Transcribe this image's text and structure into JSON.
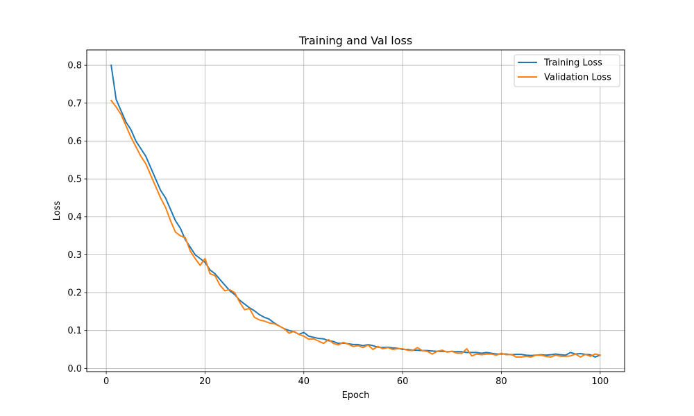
{
  "chart_data": {
    "type": "line",
    "title": "Training and Val loss",
    "xlabel": "Epoch",
    "ylabel": "Loss",
    "xlim": [
      -3.95,
      104.95
    ],
    "ylim": [
      -0.0085,
      0.8405
    ],
    "xticks": [
      0,
      20,
      40,
      60,
      80,
      100
    ],
    "yticks": [
      0.0,
      0.1,
      0.2,
      0.3,
      0.4,
      0.5,
      0.6,
      0.7,
      0.8
    ],
    "ytick_labels": [
      "0.0",
      "0.1",
      "0.2",
      "0.3",
      "0.4",
      "0.5",
      "0.6",
      "0.7",
      "0.8"
    ],
    "grid": true,
    "legend_position": "top-right",
    "series": [
      {
        "name": "Training Loss",
        "color": "#1f77b4",
        "x": [
          1,
          2,
          3,
          4,
          5,
          6,
          7,
          8,
          9,
          10,
          11,
          12,
          13,
          14,
          15,
          16,
          17,
          18,
          19,
          20,
          21,
          22,
          23,
          24,
          25,
          26,
          27,
          28,
          29,
          30,
          31,
          32,
          33,
          34,
          35,
          36,
          37,
          38,
          39,
          40,
          41,
          42,
          43,
          44,
          45,
          46,
          47,
          48,
          49,
          50,
          51,
          52,
          53,
          54,
          55,
          56,
          57,
          58,
          59,
          60,
          61,
          62,
          63,
          64,
          65,
          66,
          67,
          68,
          69,
          70,
          71,
          72,
          73,
          74,
          75,
          76,
          77,
          78,
          79,
          80,
          81,
          82,
          83,
          84,
          85,
          86,
          87,
          88,
          89,
          90,
          91,
          92,
          93,
          94,
          95,
          96,
          97,
          98,
          99,
          100
        ],
        "values": [
          0.8,
          0.71,
          0.68,
          0.65,
          0.63,
          0.6,
          0.58,
          0.56,
          0.53,
          0.5,
          0.47,
          0.45,
          0.42,
          0.39,
          0.37,
          0.34,
          0.32,
          0.3,
          0.29,
          0.28,
          0.26,
          0.25,
          0.235,
          0.22,
          0.205,
          0.195,
          0.18,
          0.17,
          0.16,
          0.152,
          0.142,
          0.135,
          0.13,
          0.12,
          0.112,
          0.105,
          0.1,
          0.097,
          0.09,
          0.095,
          0.085,
          0.082,
          0.079,
          0.078,
          0.073,
          0.071,
          0.066,
          0.067,
          0.065,
          0.063,
          0.063,
          0.06,
          0.063,
          0.06,
          0.056,
          0.055,
          0.056,
          0.054,
          0.053,
          0.05,
          0.05,
          0.048,
          0.048,
          0.047,
          0.047,
          0.046,
          0.045,
          0.045,
          0.044,
          0.045,
          0.044,
          0.044,
          0.042,
          0.042,
          0.042,
          0.04,
          0.042,
          0.04,
          0.038,
          0.038,
          0.038,
          0.036,
          0.037,
          0.037,
          0.035,
          0.034,
          0.035,
          0.036,
          0.035,
          0.036,
          0.038,
          0.036,
          0.035,
          0.042,
          0.038,
          0.039,
          0.037,
          0.036,
          0.03,
          0.035
        ]
      },
      {
        "name": "Validation Loss",
        "color": "#ff7f0e",
        "x": [
          1,
          2,
          3,
          4,
          5,
          6,
          7,
          8,
          9,
          10,
          11,
          12,
          13,
          14,
          15,
          16,
          17,
          18,
          19,
          20,
          21,
          22,
          23,
          24,
          25,
          26,
          27,
          28,
          29,
          30,
          31,
          32,
          33,
          34,
          35,
          36,
          37,
          38,
          39,
          40,
          41,
          42,
          43,
          44,
          45,
          46,
          47,
          48,
          49,
          50,
          51,
          52,
          53,
          54,
          55,
          56,
          57,
          58,
          59,
          60,
          61,
          62,
          63,
          64,
          65,
          66,
          67,
          68,
          69,
          70,
          71,
          72,
          73,
          74,
          75,
          76,
          77,
          78,
          79,
          80,
          81,
          82,
          83,
          84,
          85,
          86,
          87,
          88,
          89,
          90,
          91,
          92,
          93,
          94,
          95,
          96,
          97,
          98,
          99,
          100
        ],
        "values": [
          0.707,
          0.69,
          0.67,
          0.64,
          0.61,
          0.585,
          0.56,
          0.54,
          0.51,
          0.48,
          0.45,
          0.425,
          0.39,
          0.36,
          0.35,
          0.345,
          0.31,
          0.29,
          0.272,
          0.29,
          0.25,
          0.245,
          0.22,
          0.205,
          0.208,
          0.2,
          0.175,
          0.155,
          0.158,
          0.135,
          0.128,
          0.125,
          0.12,
          0.118,
          0.112,
          0.105,
          0.093,
          0.098,
          0.09,
          0.085,
          0.077,
          0.078,
          0.072,
          0.066,
          0.076,
          0.066,
          0.062,
          0.069,
          0.064,
          0.058,
          0.06,
          0.055,
          0.062,
          0.05,
          0.058,
          0.052,
          0.055,
          0.05,
          0.052,
          0.052,
          0.048,
          0.047,
          0.055,
          0.047,
          0.045,
          0.038,
          0.045,
          0.048,
          0.043,
          0.045,
          0.04,
          0.04,
          0.052,
          0.033,
          0.038,
          0.036,
          0.038,
          0.038,
          0.035,
          0.04,
          0.036,
          0.037,
          0.03,
          0.03,
          0.032,
          0.03,
          0.035,
          0.035,
          0.032,
          0.03,
          0.035,
          0.032,
          0.032,
          0.033,
          0.038,
          0.03,
          0.037,
          0.032,
          0.038,
          0.035
        ]
      }
    ]
  }
}
